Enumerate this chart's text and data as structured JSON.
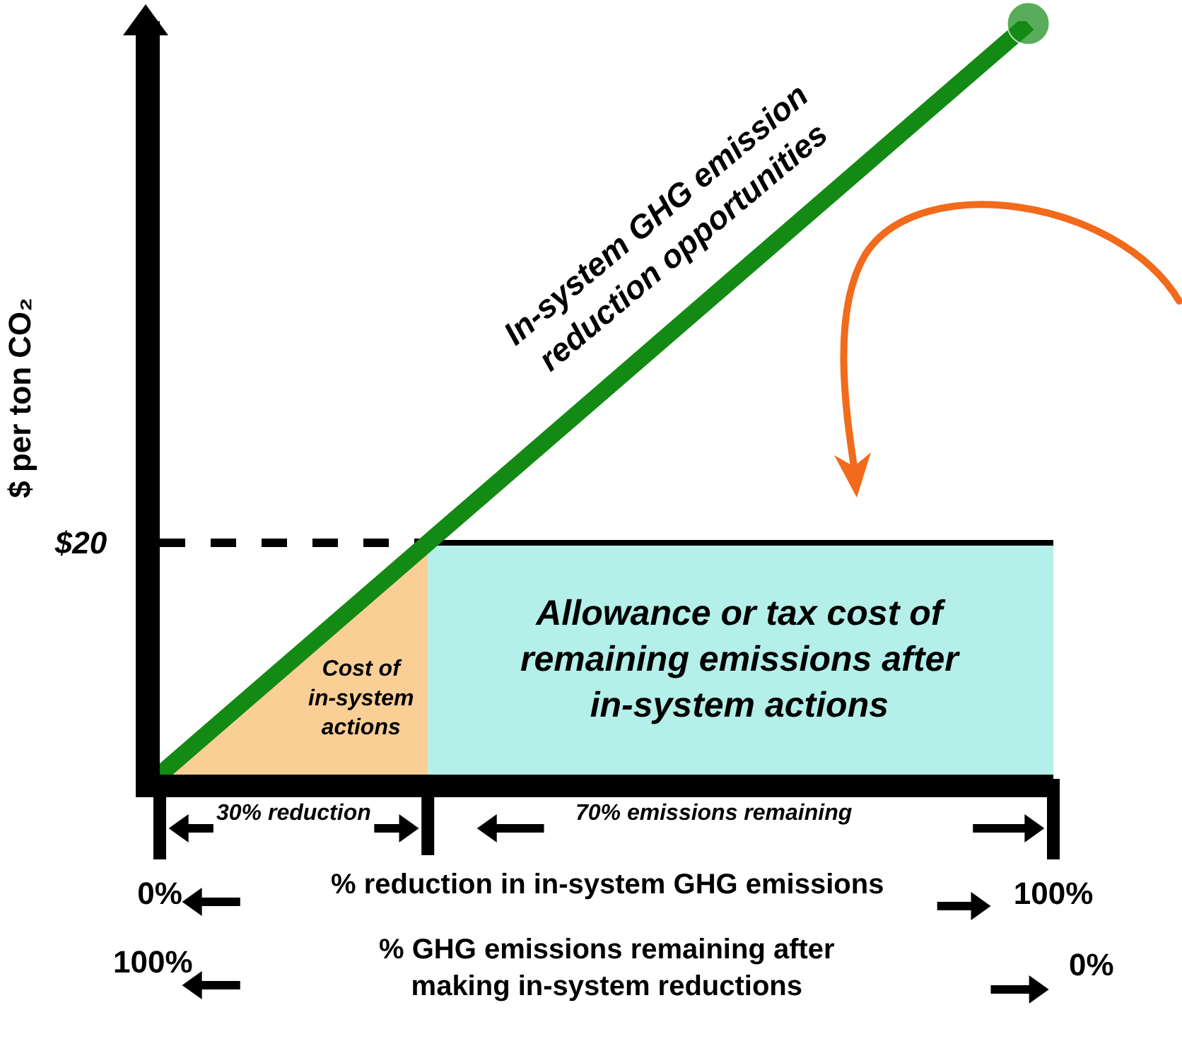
{
  "chart_data": {
    "type": "line",
    "ylabel": "$ per ton CO₂",
    "xlabel": "% reduction in in-system GHG emissions",
    "xlim": [
      0,
      100
    ],
    "xticks": [
      {
        "value": 0,
        "label": "0%"
      },
      {
        "value": 100,
        "label": "100%"
      }
    ],
    "ylim": [
      0,
      65
    ],
    "yticks": [
      {
        "value": 20,
        "label": "$20"
      }
    ],
    "series": [
      {
        "type": "area",
        "x": [
          0,
          30
        ],
        "values": [
          0,
          20
        ],
        "color": "#f9cf96"
      },
      {
        "type": "area",
        "x": [
          30,
          100
        ],
        "values": [
          20,
          20
        ],
        "color": "#b4efe9"
      },
      {
        "type": "line",
        "x": [
          0,
          30
        ],
        "values": [
          20,
          20
        ],
        "color": "#000000",
        "line_style": "dashed"
      },
      {
        "type": "line",
        "x": [
          0,
          97.2
        ],
        "values": [
          0,
          64.8
        ],
        "color": "#138a13",
        "marker": "circle"
      }
    ],
    "annotations": [
      "In-system GHG emission\nreduction opportunities",
      "Cost of\nin-system\nactions",
      "Allowance or tax cost of\nremaining emissions after\nin-system actions",
      "30% reduction",
      "70% emissions remaining",
      "100%",
      "% GHG emissions remaining after\nmaking in-system reductions",
      "0%"
    ],
    "grid": false
  }
}
